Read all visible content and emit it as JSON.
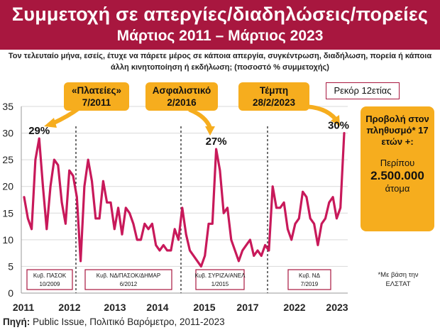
{
  "header": {
    "title": "Συμμετοχή σε απεργίες/διαδηλώσεις/πορείες",
    "subtitle": "Μάρτιος 2011 – Μάρτιος 2023"
  },
  "question": "Τον τελευταίο μήνα, εσείς, έτυχε να πάρετε μέρος σε κάποια απεργία, συγκέντρωση, διαδήλωση, πορεία ή κάποια άλλη κινητοποίηση ή εκδήλωση; (ποσοστό % συμμετοχής)",
  "callouts": [
    {
      "line1": "«Πλατείες»",
      "line2": "7/2011"
    },
    {
      "line1": "Ασφαλιστικό",
      "line2": "2/2016"
    },
    {
      "line1": "Τέμπη",
      "line2": "28/2/2023"
    }
  ],
  "record_label": "Ρεκόρ 12ετίας",
  "side_box": {
    "line1": "Προβολή στον πληθυσμό* 17 ετών +:",
    "line2": "Περίπου",
    "line3": "2.500.000",
    "line4": "άτομα"
  },
  "footnote": "*Με βάση την ΕΛΣΤΑΤ",
  "source_label": "Πηγή:",
  "source_text": " Public Issue, Πολιτικό Βαρόμετρο, 2011-2023",
  "chart_data": {
    "type": "line",
    "color": "#c8195a",
    "ylim": [
      0,
      35
    ],
    "y_ticks": [
      "0",
      "5",
      "10",
      "15",
      "20",
      "25",
      "30",
      "35"
    ],
    "x_ticks": [
      "2011",
      "2012",
      "2013",
      "2014",
      "2015",
      "2017",
      "2022",
      "2023"
    ],
    "grid": true,
    "series": [
      {
        "values": [
          18,
          14,
          12,
          25,
          29,
          20,
          12,
          20,
          25,
          24,
          17,
          13,
          23,
          22,
          18,
          6,
          20,
          25,
          21,
          14,
          14,
          21,
          17,
          17,
          12,
          16,
          11,
          16,
          15,
          13,
          10,
          10,
          13,
          12,
          13,
          9,
          8,
          9,
          8,
          8,
          12,
          10,
          16,
          11,
          8,
          7,
          6,
          5,
          7,
          13,
          13,
          27,
          23,
          15,
          16,
          10,
          8,
          6,
          8,
          9,
          10,
          7,
          8,
          7,
          9,
          8,
          20,
          16,
          16,
          17,
          12,
          10,
          13,
          14,
          19,
          18,
          14,
          13,
          9,
          13,
          14,
          17,
          18,
          14,
          16,
          30
        ]
      }
    ],
    "point_labels": [
      {
        "index": 4,
        "text": "29%"
      },
      {
        "index": 51,
        "text": "27%"
      },
      {
        "index": 85,
        "text": "30%"
      }
    ],
    "governments": [
      {
        "line1": "Κυβ. ΠΑΣΟΚ",
        "line2": "10/2009"
      },
      {
        "line1": "Κυβ. ΝΔ/ΠΑΣΟΚ/ΔΗΜΑΡ",
        "line2": "6/2012"
      },
      {
        "line1": "Κυβ. ΣΥΡΙΖΑ/ΑΝΕΛ",
        "line2": "1/2015"
      },
      {
        "line1": "Κυβ. ΝΔ",
        "line2": "7/2019"
      }
    ]
  }
}
